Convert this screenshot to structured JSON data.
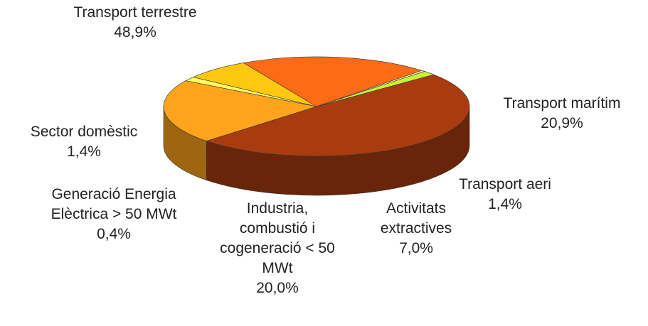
{
  "chart_data": {
    "type": "pie",
    "categories": [
      "Transport terrestre",
      "Transport marítim",
      "Transport aeri",
      "Activitats\nextractives",
      "Industria,\ncombustió i\ncogeneració < 50\nMWt",
      "Generació Energia\nElèctrica > 50 MWt",
      "Sector domèstic"
    ],
    "values": [
      48.9,
      20.9,
      1.4,
      7.0,
      20.0,
      0.4,
      1.4
    ],
    "value_labels": [
      "48,9%",
      "20,9%",
      "1,4%",
      "7,0%",
      "20,0%",
      "0,4%",
      "1,4%"
    ],
    "colors": [
      "#a83c10",
      "#ffa41c",
      "#ffff60",
      "#ffc810",
      "#ff6a14",
      "#ffffb0",
      "#ccf033"
    ]
  }
}
